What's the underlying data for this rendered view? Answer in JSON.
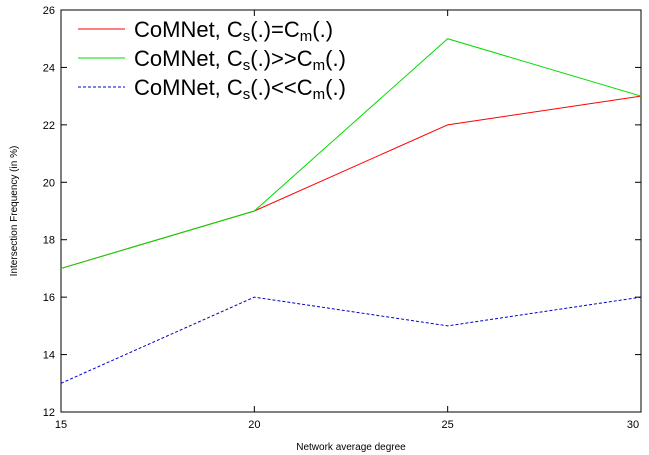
{
  "chart_data": {
    "type": "line",
    "xlabel": "Network average degree",
    "ylabel": "Intersection Frequency (in %)",
    "xlim": [
      15,
      30
    ],
    "ylim": [
      12,
      26
    ],
    "x": [
      15,
      20,
      25,
      30
    ],
    "x_ticks": [
      15,
      20,
      25,
      30
    ],
    "y_ticks": [
      12,
      14,
      16,
      18,
      20,
      22,
      24,
      26
    ],
    "grid": false,
    "legend_position": "top-left",
    "series": [
      {
        "name": "CoMNet, Cs(.)=Cm(.)",
        "legend": {
          "pre": "CoMNet, C",
          "sub1": "s",
          "mid": "(.)=C",
          "sub2": "m",
          "post": "(.)"
        },
        "values": [
          17,
          19,
          22,
          23
        ],
        "color": "#ff0000",
        "dash": "solid"
      },
      {
        "name": "CoMNet, Cs(.)>>Cm(.)",
        "legend": {
          "pre": "CoMNet, C",
          "sub1": "s",
          "mid": "(.)>>C",
          "sub2": "m",
          "post": "(.)"
        },
        "values": [
          17,
          19,
          25,
          23
        ],
        "color": "#00dd00",
        "dash": "solid"
      },
      {
        "name": "CoMNet, Cs(.)<<Cm(.)",
        "legend": {
          "pre": "CoMNet, C",
          "sub1": "s",
          "mid": "(.)<<C",
          "sub2": "m",
          "post": "(.)"
        },
        "values": [
          13,
          16,
          15,
          16
        ],
        "color": "#0000cc",
        "dash": "dashed"
      }
    ]
  }
}
